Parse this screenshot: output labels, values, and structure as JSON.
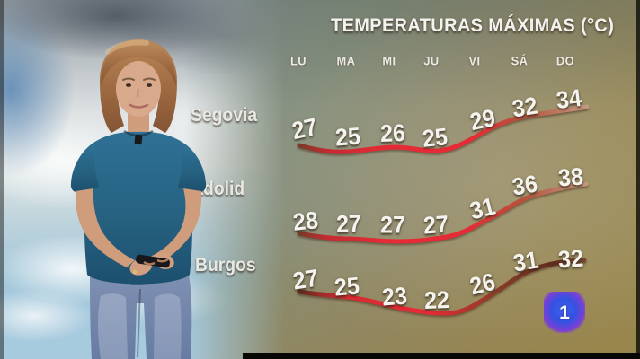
{
  "header": {
    "title": "TEMPERATURAS MÁXIMAS (°C)"
  },
  "chart_data": {
    "type": "line",
    "title": "TEMPERATURAS MÁXIMAS (°C)",
    "unit": "°C",
    "categories": [
      "LU",
      "MA",
      "MI",
      "JU",
      "VI",
      "SÁ",
      "DO"
    ],
    "series": [
      {
        "name": "Segovia",
        "values": [
          27,
          25,
          26,
          25,
          29,
          32,
          34
        ]
      },
      {
        "name": "Valladolid",
        "values": [
          28,
          27,
          27,
          27,
          31,
          36,
          38
        ]
      },
      {
        "name": "Burgos",
        "values": [
          27,
          25,
          23,
          22,
          26,
          31,
          32
        ]
      }
    ],
    "line_color": "#e42b35",
    "grid": false,
    "legend_position": "row-labels-left",
    "value_labels": "above-line"
  },
  "channel_logo": {
    "label": "1",
    "color_blue": "#3854e4",
    "color_purple": "#7b3fd4"
  },
  "colors": {
    "accent_red": "#e42b35",
    "text_light": "#f4f2ee"
  }
}
